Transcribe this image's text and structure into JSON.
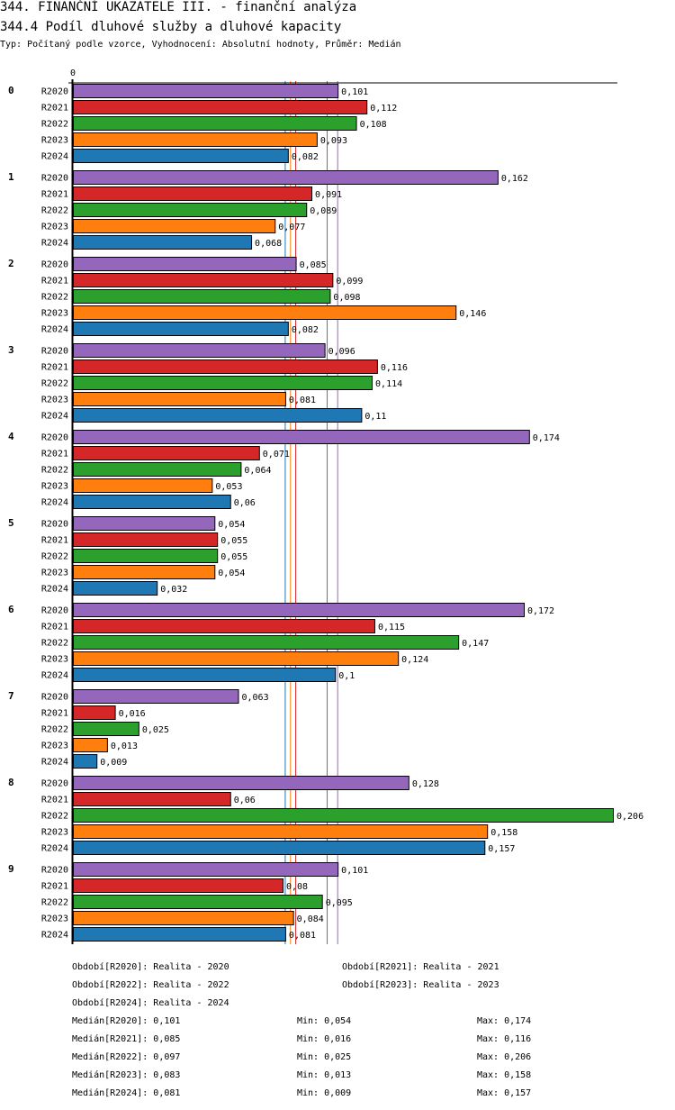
{
  "header": {
    "title": "344. FINANČNÍ UKAZATELE III. - finanční analýza",
    "subtitle": "344.4 Podíl dluhové služby a dluhové kapacity",
    "info": "Typ: Počítaný podle vzorce, Vyhodnocení: Absolutní hodnoty, Průměr: Medián"
  },
  "chart_data": {
    "type": "bar",
    "orientation": "horizontal",
    "title": "344.4 Podíl dluhové služby a dluhové kapacity",
    "x_axis_zero_label": "0",
    "xlim": [
      0,
      0.206
    ],
    "categories": [
      "0",
      "1",
      "2",
      "3",
      "4",
      "5",
      "6",
      "7",
      "8",
      "9"
    ],
    "series": [
      {
        "name": "R2020",
        "color": "#9467bd",
        "values": [
          0.101,
          0.162,
          0.085,
          0.096,
          0.174,
          0.054,
          0.172,
          0.063,
          0.128,
          0.101
        ],
        "labels": [
          "0,101",
          "0,162",
          "0,085",
          "0,096",
          "0,174",
          "0,054",
          "0,172",
          "0,063",
          "0,128",
          "0,101"
        ],
        "median": 0.101,
        "median_label": "0,101",
        "min_label": "0,054",
        "max_label": "0,174"
      },
      {
        "name": "R2021",
        "color": "#d62728",
        "values": [
          0.112,
          0.091,
          0.099,
          0.116,
          0.071,
          0.055,
          0.115,
          0.016,
          0.06,
          0.08
        ],
        "labels": [
          "0,112",
          "0,091",
          "0,099",
          "0,116",
          "0,071",
          "0,055",
          "0,115",
          "0,016",
          "0,06",
          "0,08"
        ],
        "median": 0.085,
        "median_label": "0,085",
        "min_label": "0,016",
        "max_label": "0,116"
      },
      {
        "name": "R2022",
        "color": "#2ca02c",
        "values": [
          0.108,
          0.089,
          0.098,
          0.114,
          0.064,
          0.055,
          0.147,
          0.025,
          0.206,
          0.095
        ],
        "labels": [
          "0,108",
          "0,089",
          "0,098",
          "0,114",
          "0,064",
          "0,055",
          "0,147",
          "0,025",
          "0,206",
          "0,095"
        ],
        "median": 0.097,
        "median_label": "0,097",
        "min_label": "0,025",
        "max_label": "0,206"
      },
      {
        "name": "R2023",
        "color": "#ff7f0e",
        "values": [
          0.093,
          0.077,
          0.146,
          0.081,
          0.053,
          0.054,
          0.124,
          0.013,
          0.158,
          0.084
        ],
        "labels": [
          "0,093",
          "0,077",
          "0,146",
          "0,081",
          "0,053",
          "0,054",
          "0,124",
          "0,013",
          "0,158",
          "0,084"
        ],
        "median": 0.083,
        "median_label": "0,083",
        "min_label": "0,013",
        "max_label": "0,158"
      },
      {
        "name": "R2024",
        "color": "#1f77b4",
        "values": [
          0.082,
          0.068,
          0.082,
          0.11,
          0.06,
          0.032,
          0.1,
          0.009,
          0.157,
          0.081
        ],
        "labels": [
          "0,082",
          "0,068",
          "0,082",
          "0,11",
          "0,06",
          "0,032",
          "0,1",
          "0,009",
          "0,157",
          "0,081"
        ],
        "median": 0.081,
        "median_label": "0,081",
        "min_label": "0,009",
        "max_label": "0,157"
      }
    ],
    "grid": false,
    "legend_position": "bottom"
  },
  "legend": {
    "periods": [
      "Období[R2020]: Realita - 2020",
      "Období[R2021]: Realita - 2021",
      "Období[R2022]: Realita - 2022",
      "Období[R2023]: Realita - 2023",
      "Období[R2024]: Realita - 2024"
    ],
    "stats": [
      {
        "median": "Medián[R2020]: 0,101",
        "min": "Min: 0,054",
        "max": "Max: 0,174"
      },
      {
        "median": "Medián[R2021]: 0,085",
        "min": "Min: 0,016",
        "max": "Max: 0,116"
      },
      {
        "median": "Medián[R2022]: 0,097",
        "min": "Min: 0,025",
        "max": "Max: 0,206"
      },
      {
        "median": "Medián[R2023]: 0,083",
        "min": "Min: 0,013",
        "max": "Max: 0,158"
      },
      {
        "median": "Medián[R2024]: 0,081",
        "min": "Min: 0,009",
        "max": "Max: 0,157"
      }
    ]
  }
}
